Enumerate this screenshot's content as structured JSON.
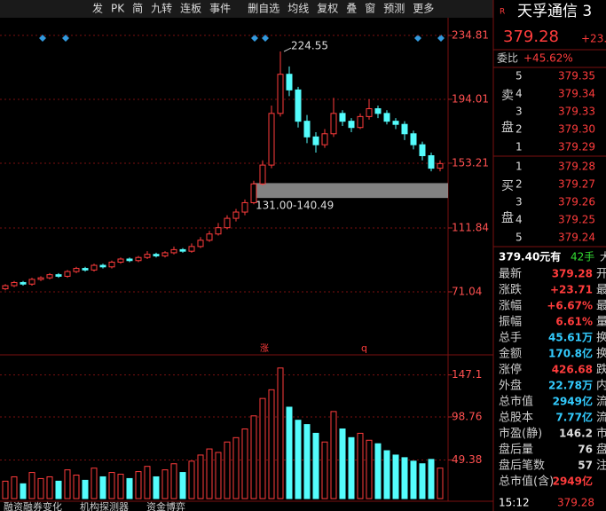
{
  "toolbar": [
    "发",
    "PK",
    "简",
    "九转",
    "连板",
    "事件",
    "删自选",
    "均线",
    "复权",
    "叠",
    "窗",
    "预测",
    "更多"
  ],
  "price_chart": {
    "ylim": [
      39.3,
      246.1
    ],
    "yticks": [
      71.04,
      111.84,
      153.21,
      194.01,
      234.81
    ],
    "high_label": "224.55",
    "band": [
      131.0,
      140.49
    ],
    "band_label": "131.00-140.49",
    "markers": [
      "涨",
      "q"
    ],
    "candles": [
      [
        73,
        75,
        76,
        72
      ],
      [
        75,
        77,
        78,
        74
      ],
      [
        77,
        76,
        78,
        75
      ],
      [
        76,
        79,
        80,
        75
      ],
      [
        79,
        80,
        81,
        78
      ],
      [
        80,
        82,
        83,
        79
      ],
      [
        82,
        81,
        83,
        80
      ],
      [
        81,
        84,
        85,
        80
      ],
      [
        84,
        86,
        87,
        83
      ],
      [
        86,
        85,
        87,
        84
      ],
      [
        85,
        88,
        89,
        84
      ],
      [
        88,
        87,
        89,
        86
      ],
      [
        87,
        90,
        91,
        86
      ],
      [
        90,
        92,
        93,
        89
      ],
      [
        92,
        91,
        93,
        90
      ],
      [
        91,
        93,
        94,
        90
      ],
      [
        93,
        95,
        97,
        92
      ],
      [
        95,
        94,
        96,
        93
      ],
      [
        94,
        96,
        97,
        93
      ],
      [
        96,
        98,
        100,
        95
      ],
      [
        98,
        97,
        99,
        96
      ],
      [
        97,
        100,
        102,
        96
      ],
      [
        100,
        104,
        106,
        99
      ],
      [
        104,
        108,
        110,
        103
      ],
      [
        108,
        112,
        115,
        107
      ],
      [
        112,
        118,
        120,
        111
      ],
      [
        118,
        122,
        124,
        116
      ],
      [
        122,
        128,
        130,
        120
      ],
      [
        128,
        140,
        142,
        127
      ],
      [
        140,
        152,
        155,
        139
      ],
      [
        152,
        185,
        190,
        150
      ],
      [
        185,
        210,
        224.55,
        183
      ],
      [
        210,
        200,
        215,
        196
      ],
      [
        200,
        180,
        202,
        176
      ],
      [
        180,
        170,
        184,
        166
      ],
      [
        170,
        165,
        173,
        160
      ],
      [
        165,
        172,
        175,
        163
      ],
      [
        172,
        185,
        195,
        170
      ],
      [
        185,
        180,
        187,
        177
      ],
      [
        180,
        176,
        182,
        173
      ],
      [
        176,
        183,
        185,
        175
      ],
      [
        183,
        188,
        194,
        181
      ],
      [
        188,
        185,
        190,
        182
      ],
      [
        185,
        180,
        187,
        178
      ],
      [
        180,
        178,
        182,
        175
      ],
      [
        178,
        172,
        180,
        168
      ],
      [
        172,
        165,
        174,
        162
      ],
      [
        165,
        158,
        167,
        155
      ],
      [
        158,
        150,
        160,
        148
      ],
      [
        150,
        153,
        155,
        148
      ]
    ]
  },
  "volume_chart": {
    "ylim": [
      5,
      165
    ],
    "yticks": [
      49.38,
      98.76,
      147.1
    ],
    "values": [
      25,
      30,
      22,
      35,
      28,
      30,
      25,
      38,
      32,
      26,
      40,
      30,
      35,
      33,
      28,
      36,
      42,
      30,
      38,
      45,
      35,
      48,
      55,
      62,
      58,
      70,
      75,
      85,
      100,
      120,
      130,
      155,
      110,
      95,
      90,
      80,
      70,
      105,
      85,
      75,
      80,
      72,
      68,
      60,
      55,
      52,
      48,
      45,
      50,
      40
    ]
  },
  "bottom_tabs": [
    "融资融券变化",
    "机构探测器",
    "资金博弈"
  ],
  "quote": {
    "badge": "R",
    "name": "天孚通信 3",
    "price": "379.28",
    "change": "+23.",
    "ratio_label": "委比",
    "ratio": "+45.62%",
    "sell_label": [
      "卖",
      "盘"
    ],
    "buy_label": [
      "买",
      "盘"
    ],
    "sell": [
      [
        "5",
        "379.35"
      ],
      [
        "4",
        "379.34"
      ],
      [
        "3",
        "379.33"
      ],
      [
        "2",
        "379.30"
      ],
      [
        "1",
        "379.29"
      ]
    ],
    "buy": [
      [
        "1",
        "379.28"
      ],
      [
        "2",
        "379.27"
      ],
      [
        "3",
        "379.26"
      ],
      [
        "4",
        "379.25"
      ],
      [
        "5",
        "379.24"
      ]
    ],
    "trade_line": [
      "379.40元有",
      "42手",
      "大"
    ],
    "stats": [
      [
        "最新",
        "379.28",
        "开"
      ],
      [
        "涨跌",
        "+23.71",
        "最"
      ],
      [
        "涨幅",
        "+6.67%",
        "最"
      ],
      [
        "振幅",
        "6.61%",
        "量"
      ],
      [
        "总手",
        "45.61万",
        "换"
      ],
      [
        "金额",
        "170.8亿",
        "换"
      ],
      [
        "涨停",
        "426.68",
        "跌"
      ],
      [
        "外盘",
        "22.78万",
        "内"
      ],
      [
        "总市值",
        "2949亿",
        "流"
      ],
      [
        "总股本",
        "7.77亿",
        "流"
      ],
      [
        "市盈(静)",
        "146.2",
        "市"
      ],
      [
        "盘后量",
        "76",
        "盘"
      ],
      [
        "盘后笔数",
        "57",
        "注"
      ],
      [
        "总市值(含)",
        "2949亿",
        ""
      ]
    ],
    "time": "15:12",
    "last": "379.28"
  }
}
